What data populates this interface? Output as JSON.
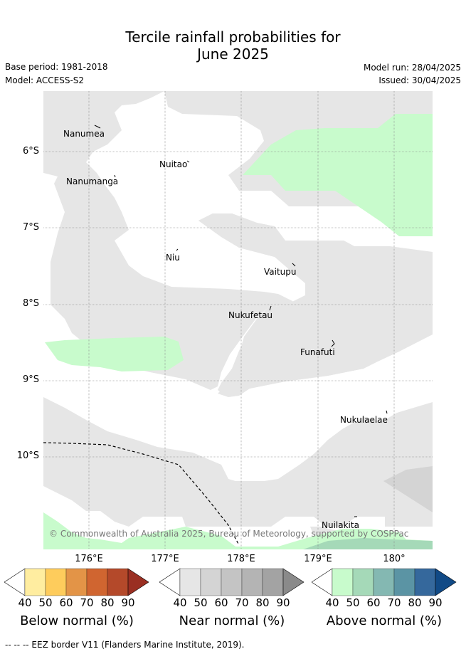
{
  "title": {
    "line1": "Tercile rainfall probabilities for",
    "line2": "June 2025"
  },
  "base_period": "Base period: 1981-2018",
  "model": "Model: ACCESS-S2",
  "model_run": "Model run: 28/04/2025",
  "issued": "Issued: 30/04/2025",
  "lat_labels": [
    "6°S",
    "7°S",
    "8°S",
    "9°S",
    "10°S"
  ],
  "lon_labels": [
    "176°E",
    "177°E",
    "178°E",
    "179°E",
    "180°"
  ],
  "places": [
    "Nanumea",
    "Nuitao",
    "Nanumanga",
    "Niu",
    "Vaitupu",
    "Nukufetau",
    "Funafuti",
    "Nukulaelae",
    "Nuilakita"
  ],
  "copyright": "© Commonwealth of Australia 2025, Bureau of Meteorology, supported by COSPPac",
  "colorbars": [
    {
      "title": "Below normal (%)",
      "ticks": [
        "40",
        "50",
        "60",
        "70",
        "80",
        "90"
      ],
      "colors": [
        "#ffeda0",
        "#fecc5c",
        "#e39447",
        "#d06530",
        "#b4492a",
        "#9a2f22"
      ]
    },
    {
      "title": "Near normal (%)",
      "ticks": [
        "40",
        "50",
        "60",
        "70",
        "80",
        "90"
      ],
      "colors": [
        "#e6e6e6",
        "#d4d4d4",
        "#c4c4c4",
        "#b4b4b4",
        "#a3a3a3",
        "#8a8a8a"
      ]
    },
    {
      "title": "Above normal (%)",
      "ticks": [
        "40",
        "50",
        "60",
        "70",
        "80",
        "90"
      ],
      "colors": [
        "#c8fbcc",
        "#a5d9b8",
        "#84b8b2",
        "#5b94a4",
        "#35689c",
        "#114a86"
      ]
    }
  ],
  "footer": "--  --  -- EEZ border V11 (Flanders Marine Institute, 2019)."
}
